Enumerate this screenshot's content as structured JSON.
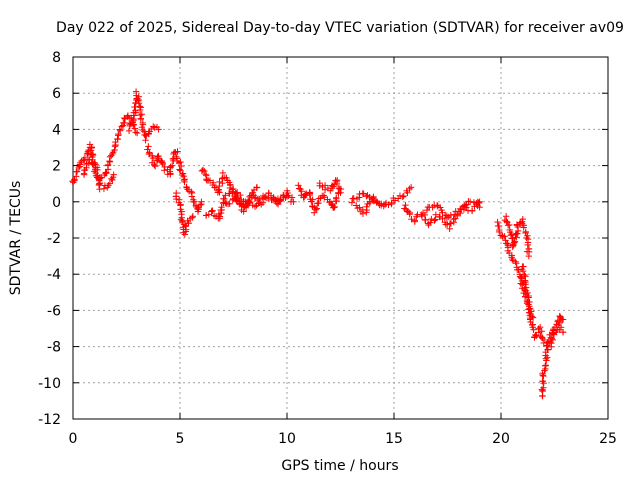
{
  "chart_data": {
    "type": "scatter",
    "title": "Day 022 of 2025, Sidereal Day-to-day VTEC variation (SDTVAR) for receiver av09",
    "xlabel": "GPS time / hours",
    "ylabel": "SDTVAR / TECUs",
    "xlim": [
      0,
      25
    ],
    "ylim": [
      -12,
      8
    ],
    "x_ticks": [
      0,
      5,
      10,
      15,
      20,
      25
    ],
    "y_ticks": [
      -12,
      -10,
      -8,
      -6,
      -4,
      -2,
      0,
      2,
      4,
      6,
      8
    ],
    "grid": true,
    "marker": "+",
    "color": "#ff0000",
    "series": [
      {
        "name": "SDTVAR",
        "segments": [
          {
            "x": [
              0.0,
              0.3,
              0.6,
              0.8,
              1.0,
              1.2,
              1.5,
              1.8,
              2.0,
              2.2,
              2.5,
              2.8,
              3.0
            ],
            "y": [
              1.0,
              2.0,
              2.6,
              3.2,
              2.0,
              1.0,
              1.5,
              2.5,
              3.3,
              4.0,
              4.8,
              4.5,
              3.8
            ]
          },
          {
            "x": [
              0.5,
              0.8,
              1.1,
              1.3,
              1.6,
              1.9
            ],
            "y": [
              1.5,
              2.5,
              1.8,
              0.8,
              0.9,
              1.5
            ]
          },
          {
            "x": [
              2.6,
              2.9,
              3.0,
              3.2,
              3.4,
              3.7,
              4.0
            ],
            "y": [
              4.0,
              5.0,
              6.0,
              4.5,
              3.5,
              4.2,
              4.0
            ]
          },
          {
            "x": [
              3.5,
              3.8,
              4.0,
              4.2,
              4.5,
              4.8,
              5.0,
              5.3,
              5.6,
              5.8,
              6.0
            ],
            "y": [
              3.0,
              2.0,
              2.5,
              2.0,
              1.5,
              2.8,
              2.0,
              0.8,
              0.3,
              -0.5,
              0.0
            ]
          },
          {
            "x": [
              4.8,
              5.0,
              5.2,
              5.4,
              5.6
            ],
            "y": [
              0.5,
              -0.3,
              -1.8,
              -1.0,
              -0.8
            ]
          },
          {
            "x": [
              6.0,
              6.3,
              6.5,
              6.8,
              7.0,
              7.3,
              7.5,
              7.8,
              8.0,
              8.3,
              8.6
            ],
            "y": [
              1.8,
              1.2,
              1.0,
              0.5,
              1.5,
              1.0,
              0.5,
              -0.2,
              -0.5,
              0.2,
              0.8
            ]
          },
          {
            "x": [
              6.2,
              6.5,
              6.8,
              7.0,
              7.3,
              7.6,
              8.0,
              8.4,
              8.8,
              9.2,
              9.6,
              10.0,
              10.3
            ],
            "y": [
              -0.8,
              -0.5,
              -1.0,
              0.0,
              -0.2,
              0.3,
              -0.3,
              0.4,
              -0.1,
              0.5,
              0.0,
              0.5,
              0.0
            ]
          },
          {
            "x": [
              7.0,
              7.5,
              8.0,
              8.5,
              9.0,
              9.5,
              10.0
            ],
            "y": [
              0.2,
              0.6,
              0.1,
              -0.2,
              0.3,
              -0.1,
              0.3
            ]
          },
          {
            "x": [
              10.5,
              10.8,
              11.0,
              11.3,
              11.6,
              12.0,
              12.2,
              12.4
            ],
            "y": [
              0.8,
              0.2,
              0.6,
              -0.5,
              0.3,
              0.1,
              -0.4,
              0.5
            ]
          },
          {
            "x": [
              11.5,
              12.0,
              12.3,
              12.5
            ],
            "y": [
              1.0,
              0.6,
              1.2,
              0.5
            ]
          },
          {
            "x": [
              13.0,
              13.5,
              14.0,
              14.5,
              15.0,
              15.5,
              15.8
            ],
            "y": [
              0.0,
              0.5,
              0.2,
              -0.3,
              0.1,
              0.4,
              0.8
            ]
          },
          {
            "x": [
              13.2,
              13.6,
              14.0,
              14.4
            ],
            "y": [
              -0.3,
              -0.6,
              0.2,
              -0.2
            ]
          },
          {
            "x": [
              15.5,
              15.7,
              16.0,
              16.3,
              16.6,
              17.0,
              17.3,
              17.6,
              18.0,
              18.3,
              18.6,
              18.9,
              19.0
            ],
            "y": [
              -0.2,
              -0.7,
              -1.0,
              -0.6,
              -1.2,
              -0.8,
              -1.0,
              -1.4,
              -0.7,
              -0.3,
              -0.5,
              -0.1,
              0.0
            ]
          },
          {
            "x": [
              16.5,
              17.0,
              17.5,
              18.0,
              18.5,
              19.0
            ],
            "y": [
              -0.4,
              -0.2,
              -0.8,
              -0.5,
              0.0,
              -0.3
            ]
          },
          {
            "x": [
              19.8,
              20.0,
              20.2,
              20.4,
              20.6,
              20.8,
              21.0,
              21.2,
              21.4,
              21.5
            ],
            "y": [
              -1.2,
              -1.8,
              -2.0,
              -2.8,
              -3.2,
              -3.8,
              -4.6,
              -5.4,
              -6.0,
              -6.4
            ]
          },
          {
            "x": [
              20.2,
              20.4,
              20.6,
              20.8,
              21.0,
              21.2,
              21.3
            ],
            "y": [
              -0.8,
              -1.5,
              -2.5,
              -1.2,
              -1.0,
              -2.0,
              -3.0
            ]
          },
          {
            "x": [
              21.0,
              21.2,
              21.4,
              21.6,
              21.8,
              22.0
            ],
            "y": [
              -3.5,
              -5.0,
              -6.5,
              -7.5,
              -7.0,
              -7.8
            ]
          },
          {
            "x": [
              21.9,
              22.0,
              22.1,
              22.2,
              22.4,
              22.6,
              22.8,
              22.9
            ],
            "y": [
              -10.8,
              -9.5,
              -8.6,
              -7.8,
              -7.2,
              -6.6,
              -6.3,
              -6.5
            ]
          },
          {
            "x": [
              22.3,
              22.5,
              22.7,
              22.9
            ],
            "y": [
              -8.0,
              -7.3,
              -6.8,
              -7.2
            ]
          }
        ]
      }
    ]
  }
}
